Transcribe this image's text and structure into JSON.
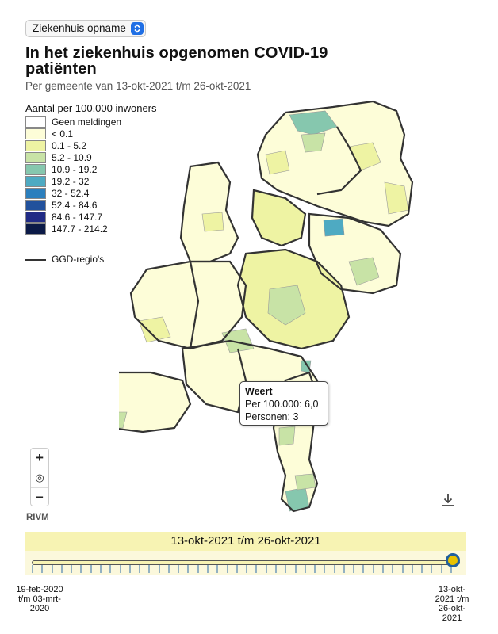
{
  "dropdown": {
    "selected": "Ziekenhuis opname"
  },
  "title": "In het ziekenhuis opgenomen COVID-19 patiënten",
  "subtitle": "Per gemeente van 13-okt-2021 t/m 26-okt-2021",
  "legend": {
    "title": "Aantal per 100.000 inwoners",
    "items": [
      {
        "label": "Geen meldingen",
        "color": "#ffffff"
      },
      {
        "label": "< 0.1",
        "color": "#fdfdd8"
      },
      {
        "label": "0.1 - 5.2",
        "color": "#eef3a3"
      },
      {
        "label": "5.2 - 10.9",
        "color": "#c8e3a6"
      },
      {
        "label": "10.9 - 19.2",
        "color": "#86c7ae"
      },
      {
        "label": "19.2 - 32",
        "color": "#4eaac2"
      },
      {
        "label": "32 - 52.4",
        "color": "#2b7fbd"
      },
      {
        "label": "52.4 - 84.6",
        "color": "#22519c"
      },
      {
        "label": "84.6 - 147.7",
        "color": "#202a85"
      },
      {
        "label": "147.7 - 214.2",
        "color": "#0b1a47"
      }
    ],
    "ggd_label": "GGD-regio's"
  },
  "tooltip": {
    "name": "Weert",
    "per100k": "Per 100.000: 6,0",
    "persons": "Personen: 3"
  },
  "controls": {
    "zoom_in": "+",
    "locate": "◎",
    "zoom_out": "−"
  },
  "source": "RIVM",
  "timeline": {
    "period": "13-okt-2021 t/m 26-okt-2021",
    "start_label": "19-feb-2020 t/m 03-mrt-2020",
    "end_label": "13-okt-2021 t/m 26-okt-2021"
  }
}
